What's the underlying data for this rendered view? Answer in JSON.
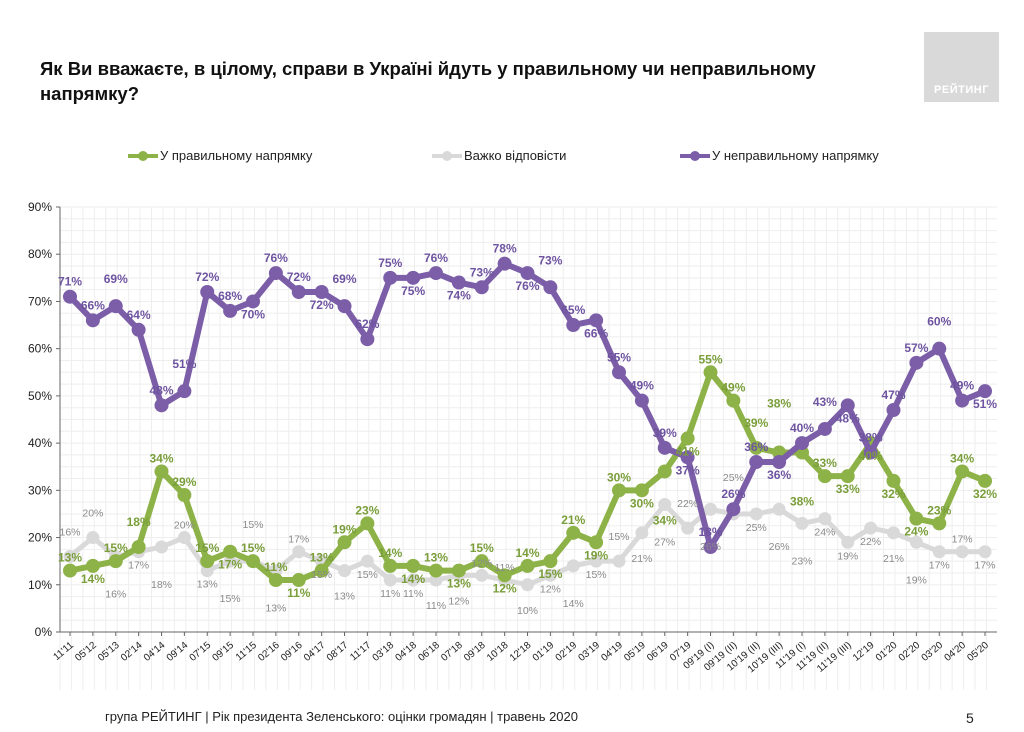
{
  "title": "Як Ви вважаєте, в цілому, справи в Україні йдуть у правильному чи неправильному напрямку?",
  "logo_text": "РЕЙТИНГ",
  "footer": "група РЕЙТИНГ |  Рік президента Зеленського: оцінки громадян | травень 2020",
  "page_number": "5",
  "chart_data": {
    "type": "line",
    "title": "",
    "xlabel": "",
    "ylabel": "",
    "ylim": [
      0,
      90
    ],
    "yticks": [
      "0%",
      "10%",
      "20%",
      "30%",
      "40%",
      "50%",
      "60%",
      "70%",
      "80%",
      "90%"
    ],
    "grid": true,
    "legend_placement": "top",
    "categories": [
      "11'11",
      "05'12",
      "05'13",
      "02'14",
      "04'14",
      "09'14",
      "07'15",
      "09'15",
      "11'15",
      "02'16",
      "09'16",
      "04'17",
      "08'17",
      "11'17",
      "03'18",
      "04'18",
      "06'18",
      "07'18",
      "09'18",
      "10'18",
      "12'18",
      "01'19",
      "02'19",
      "03'19",
      "04'19",
      "05'19",
      "06'19",
      "07'19",
      "09'19 (I)",
      "09'19 (II)",
      "10'19 (II)",
      "10'19 (III)",
      "11'19 (I)",
      "11'19 (II)",
      "11'19 (III)",
      "12'19",
      "01'20",
      "02'20",
      "03'20",
      "04'20",
      "05'20"
    ],
    "series": [
      {
        "name": "У правильному напрямку",
        "color": "#8db247",
        "values": [
          13,
          14,
          15,
          18,
          34,
          29,
          15,
          17,
          15,
          11,
          11,
          13,
          19,
          23,
          14,
          14,
          13,
          13,
          15,
          12,
          14,
          15,
          21,
          19,
          30,
          30,
          34,
          41,
          55,
          49,
          39,
          38,
          38,
          33,
          33,
          40,
          32,
          24,
          23,
          34,
          32
        ]
      },
      {
        "name": "Важко відповісти",
        "color": "#d9d9d9",
        "values": [
          16,
          20,
          16,
          17,
          18,
          20,
          13,
          15,
          15,
          13,
          17,
          15,
          13,
          15,
          11,
          11,
          11,
          12,
          12,
          11,
          10,
          12,
          14,
          15,
          15,
          21,
          27,
          22,
          26,
          25,
          25,
          26,
          23,
          24,
          19,
          22,
          21,
          19,
          17,
          17,
          17
        ]
      },
      {
        "name": "У неправильному напрямку",
        "color": "#7b5ea7",
        "values": [
          71,
          66,
          69,
          64,
          48,
          51,
          72,
          68,
          70,
          76,
          72,
          72,
          69,
          62,
          75,
          75,
          76,
          74,
          73,
          78,
          76,
          73,
          65,
          66,
          55,
          49,
          39,
          37,
          18,
          26,
          36,
          36,
          40,
          43,
          48,
          38,
          47,
          57,
          60,
          49,
          51
        ]
      }
    ]
  }
}
